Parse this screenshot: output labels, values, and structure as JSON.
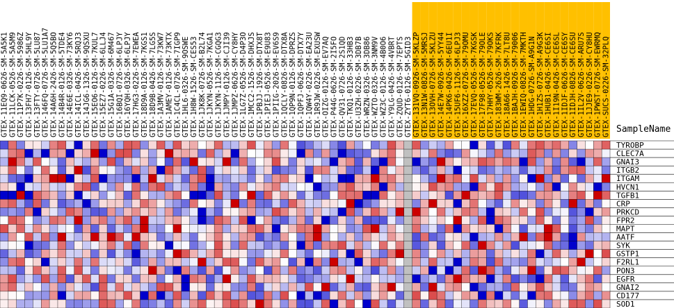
{
  "chart_data": {
    "type": "heatmap",
    "xlabel": "SampleName",
    "colors": {
      "low": "#0000cc",
      "mid": "#ffffff",
      "high": "#cc0000",
      "grey": "#c0c0c0",
      "highlight": "#ffc000",
      "grid": "#000000"
    },
    "genes": [
      "TYROBP",
      "CLEC7A",
      "GNAI3",
      "ITGB2",
      "ITGAM",
      "HVCN1",
      "TGFB1",
      "CRP",
      "PRKCD",
      "FPR2",
      "MAPT",
      "AATF",
      "SYK",
      "GSTP1",
      "F2RL1",
      "PON3",
      "EGFR",
      "GNAI2",
      "CD177",
      "SOD1"
    ],
    "samples": [
      "GTEX-11EQ9-0626-SM-5A5K1",
      "GTEX-11LCK-0526-SM-5A5M9",
      "GTEX-11P7K-0226-SM-5986Z",
      "GTEX-13FH7-0126-SM-5HL9Y",
      "GTEX-13FTY-0726-SM-5LU87",
      "GTEX-146FQ-0726-SM-5LU1A7",
      "GTEX-14A6H-2426-SM-5Q5BO",
      "GTEX-14B4R-0126-SM-5TDE4",
      "GTEX-14E6E-0326-SM-73KY6",
      "GTEX-14ICL-0426-SM-5RQJ3",
      "GTEX-14JG6-1326-SM-9QSXU",
      "GTEX-15EO6-0126-SM-7KUL7",
      "GTEX-15EZ7-0226-SM-6LLJ4",
      "GTEX-15G1A-0326-SM-6M467",
      "GTEX-16BQI-0726-SM-6LPJY",
      "GTEX-16YQH-0326-SM-6LPJY",
      "GTEX-17HG3-0226-SM-7EWEA",
      "GTEX-18D9A-0126-SM-7KGS1",
      "GTEX-18D9B-0426-SM-7LG5S",
      "GTEX-1A3MV-0126-SM-73KW7",
      "GTEX-1AMEY-0126-SM-73KTX",
      "GTEX-1C4CL-0726-SM-7IGP9",
      "GTEX-1HL6-0326-SM-9OSWE",
      "GTEX-1H8W-1526-SM-CES53",
      "GTEX-1JK8K-0726-SM-B2L74",
      "GTEX-1JKYN-0526-SM-7KGA1",
      "GTEX-1JKYN-1126-SM-CGQG3",
      "GTEX-1JMPY-0126-SM-CJI39",
      "GTEX-1JMPZ-0626-SM-CY8HY",
      "GTEX-1LG7Z-0526-SM-D4P3O",
      "GTEX-1MCC2-1526-SM-DHXJS",
      "GTEX-1PBJJ-1926-SM-DTX8T",
      "GTEX-1PIEJ-0526-SM-E9U83",
      "GTEX-1PIIG-2026-SM-EV6S9",
      "GTEX-1QCLY-0826-SM-DTX8A",
      "GTEX-1QP9N-0126-SM-DPRZS",
      "GTEX-1QPFJ-0626-SM-DTX7Y",
      "GTEX-1QW4Y-0226-SM-EA23U",
      "GTEX-1R9JW-0226-SM-EXUSW",
      "GTEX-OIZG-0126-SM-EV7AQ",
      "GTEX-P44G-0626-SM-2I5FO",
      "GTEX-QV31-0726-SM-2S1QD",
      "GTEX-TKQ1-0126-SM-33HB3",
      "GTEX-U3ZH-0226-SM-3DB7B",
      "GTEX-WRZN-0326-SM-3DB86",
      "GTEX-WZTO-0326-SM-3NM9V",
      "GTEX-WZ3C-0126-SM-4B0O6",
      "GTEX-Y9LG-0426-SM-4VBRT",
      "GTEX-ZQUD-0126-SM-7EPTS",
      "GTEX-ZYT6-0126-SM-5GID3",
      "GTEX-131VQ-0926-SM-5KLZP",
      "GTEX-13N1W-0826-SM-5MRSJ",
      "GTEX-13OVH-0726-SM-5KLZU",
      "GTEX-14E7W-0926-SM-5YY44",
      "GTEX-14PK6-0426-SM-6EU1I",
      "GTEX-15UF6-1126-SM-6LPJ3",
      "GTEX-16XZZ-0726-SM-79OMU",
      "GTEX-17EVQ-0526-SM-7KGSK",
      "GTEX-17F98-0526-SM-79OLE",
      "GTEX-17HHY-0526-SM-79OKS",
      "GTEX-183WM-2626-SM-7KFRK",
      "GTEX-18A66-1426-SM-7LT8U",
      "GTEX-1BAJH-0926-SM-79006",
      "GTEX-1EWIQ-0826-SM-7MKTH",
      "GTEX-1HDG-0726-SM-A9G1N",
      "GTEX-1H1ZS-0726-SM-A9G3K",
      "GTEX-1HUB1-0426-SM-CE6SI",
      "GTEX-1I19N-0426-SM-CE6SL",
      "GTEX-1IDJF-0626-SM-CE6SY",
      "GTEX-1IDJH-0826-SM-CE6SU",
      "GTEX-1IL2V-0626-SM-ARU7S",
      "GTEX-1JJE9-0226-SM-CY8HU",
      "GTEX-1PWST-0726-SM-EWRMQ",
      "GTEX-SUCS-0226-SM-32PLQ"
    ],
    "highlight_start_index": 50,
    "grey_column_index": 49,
    "value_range": [
      -2,
      2
    ],
    "seed": 20240513
  }
}
